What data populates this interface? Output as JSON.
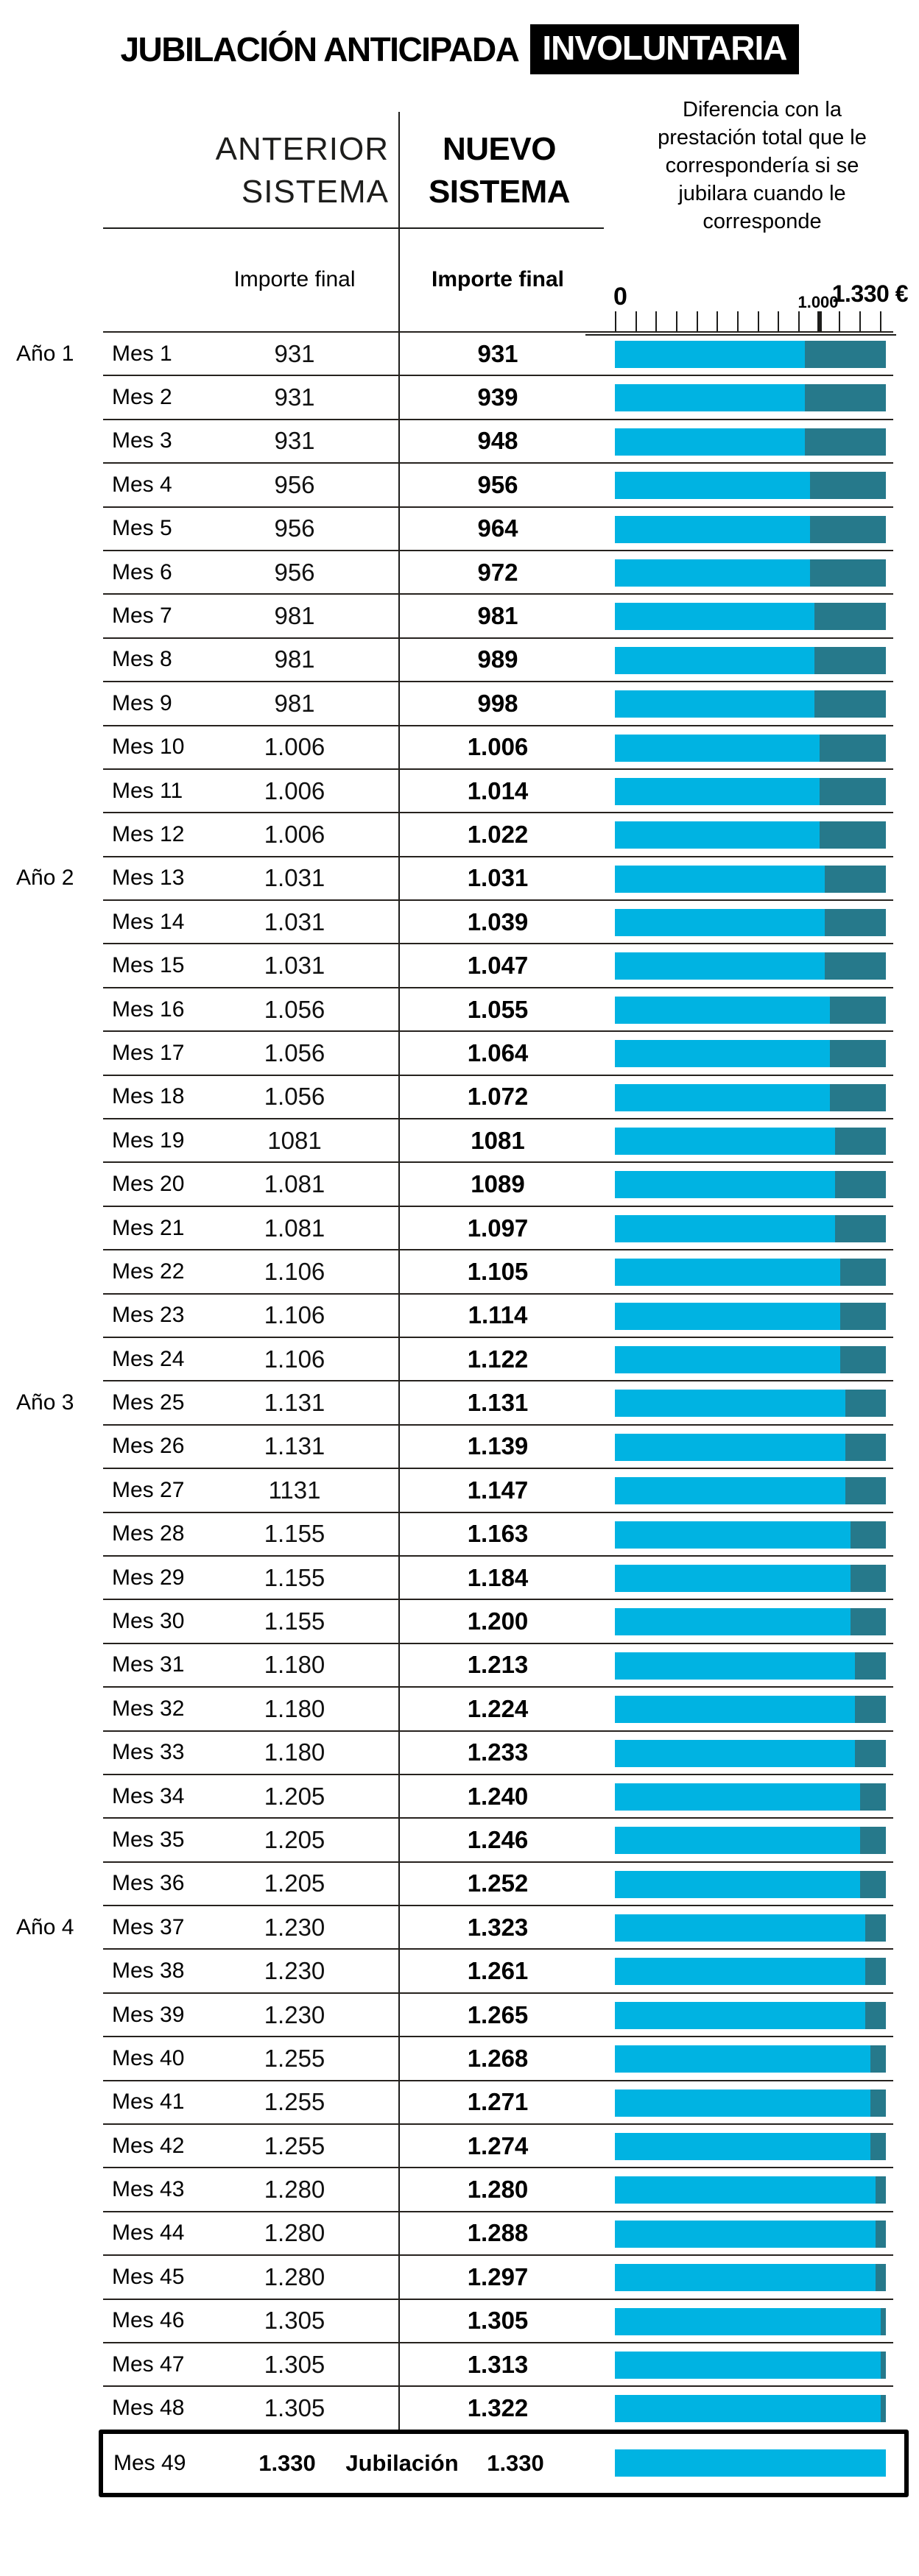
{
  "title": {
    "main": "JUBILACIÓN ANTICIPADA",
    "highlight": "INVOLUNTARIA"
  },
  "columns": {
    "anterior_line1": "ANTERIOR",
    "anterior_line2": "SISTEMA",
    "nuevo_line1": "NUEVO",
    "nuevo_line2": "SISTEMA",
    "importe_anterior": "Importe final",
    "importe_nuevo": "Importe final"
  },
  "legend": "Diferencia con la prestación total que le correspondería si se jubilara cuando le corresponde",
  "axis": {
    "zero": "0",
    "mid": "1.000",
    "max": "1.330 €",
    "tick_count": 14,
    "tick_step": 100,
    "bold_tick_index": 10
  },
  "scale_max": 1330,
  "colors": {
    "cyan": "#00b3e2",
    "teal": "#26798b"
  },
  "rows": [
    {
      "ano": "Año 1",
      "mes": "Mes 1",
      "anterior": "931",
      "nuevo": "931",
      "value": 931
    },
    {
      "mes": "Mes 2",
      "anterior": "931",
      "nuevo": "939",
      "value": 931
    },
    {
      "mes": "Mes 3",
      "anterior": "931",
      "nuevo": "948",
      "value": 931
    },
    {
      "mes": "Mes 4",
      "anterior": "956",
      "nuevo": "956",
      "value": 956
    },
    {
      "mes": "Mes 5",
      "anterior": "956",
      "nuevo": "964",
      "value": 956
    },
    {
      "mes": "Mes 6",
      "anterior": "956",
      "nuevo": "972",
      "value": 956
    },
    {
      "mes": "Mes 7",
      "anterior": "981",
      "nuevo": "981",
      "value": 981
    },
    {
      "mes": "Mes 8",
      "anterior": "981",
      "nuevo": "989",
      "value": 981
    },
    {
      "mes": "Mes 9",
      "anterior": "981",
      "nuevo": "998",
      "value": 981
    },
    {
      "mes": "Mes 10",
      "anterior": "1.006",
      "nuevo": "1.006",
      "value": 1006
    },
    {
      "mes": "Mes 11",
      "anterior": "1.006",
      "nuevo": "1.014",
      "value": 1006
    },
    {
      "mes": "Mes 12",
      "anterior": "1.006",
      "nuevo": "1.022",
      "value": 1006
    },
    {
      "ano": "Año 2",
      "mes": "Mes 13",
      "anterior": "1.031",
      "nuevo": "1.031",
      "value": 1031
    },
    {
      "mes": "Mes 14",
      "anterior": "1.031",
      "nuevo": "1.039",
      "value": 1031
    },
    {
      "mes": "Mes 15",
      "anterior": "1.031",
      "nuevo": "1.047",
      "value": 1031
    },
    {
      "mes": "Mes 16",
      "anterior": "1.056",
      "nuevo": "1.055",
      "value": 1056
    },
    {
      "mes": "Mes 17",
      "anterior": "1.056",
      "nuevo": "1.064",
      "value": 1056
    },
    {
      "mes": "Mes 18",
      "anterior": "1.056",
      "nuevo": "1.072",
      "value": 1056
    },
    {
      "mes": "Mes 19",
      "anterior": "1081",
      "nuevo": "1081",
      "value": 1081
    },
    {
      "mes": "Mes 20",
      "anterior": "1.081",
      "nuevo": "1089",
      "value": 1081
    },
    {
      "mes": "Mes 21",
      "anterior": "1.081",
      "nuevo": "1.097",
      "value": 1081
    },
    {
      "mes": "Mes 22",
      "anterior": "1.106",
      "nuevo": "1.105",
      "value": 1106
    },
    {
      "mes": "Mes 23",
      "anterior": "1.106",
      "nuevo": "1.114",
      "value": 1106
    },
    {
      "mes": "Mes 24",
      "anterior": "1.106",
      "nuevo": "1.122",
      "value": 1106
    },
    {
      "ano": "Año 3",
      "mes": "Mes 25",
      "anterior": "1.131",
      "nuevo": "1.131",
      "value": 1131
    },
    {
      "mes": "Mes 26",
      "anterior": "1.131",
      "nuevo": "1.139",
      "value": 1131
    },
    {
      "mes": "Mes 27",
      "anterior": "1131",
      "nuevo": "1.147",
      "value": 1131
    },
    {
      "mes": "Mes 28",
      "anterior": "1.155",
      "nuevo": "1.163",
      "value": 1155
    },
    {
      "mes": "Mes 29",
      "anterior": "1.155",
      "nuevo": "1.184",
      "value": 1155
    },
    {
      "mes": "Mes 30",
      "anterior": "1.155",
      "nuevo": "1.200",
      "value": 1155
    },
    {
      "mes": "Mes 31",
      "anterior": "1.180",
      "nuevo": "1.213",
      "value": 1180
    },
    {
      "mes": "Mes 32",
      "anterior": "1.180",
      "nuevo": "1.224",
      "value": 1180
    },
    {
      "mes": "Mes 33",
      "anterior": "1.180",
      "nuevo": "1.233",
      "value": 1180
    },
    {
      "mes": "Mes 34",
      "anterior": "1.205",
      "nuevo": "1.240",
      "value": 1205
    },
    {
      "mes": "Mes 35",
      "anterior": "1.205",
      "nuevo": "1.246",
      "value": 1205
    },
    {
      "mes": "Mes 36",
      "anterior": "1.205",
      "nuevo": "1.252",
      "value": 1205
    },
    {
      "ano": "Año 4",
      "mes": "Mes 37",
      "anterior": "1.230",
      "nuevo": "1.323",
      "value": 1230
    },
    {
      "mes": "Mes 38",
      "anterior": "1.230",
      "nuevo": "1.261",
      "value": 1230
    },
    {
      "mes": "Mes 39",
      "anterior": "1.230",
      "nuevo": "1.265",
      "value": 1230
    },
    {
      "mes": "Mes 40",
      "anterior": "1.255",
      "nuevo": "1.268",
      "value": 1255
    },
    {
      "mes": "Mes 41",
      "anterior": "1.255",
      "nuevo": "1.271",
      "value": 1255
    },
    {
      "mes": "Mes 42",
      "anterior": "1.255",
      "nuevo": "1.274",
      "value": 1255
    },
    {
      "mes": "Mes 43",
      "anterior": "1.280",
      "nuevo": "1.280",
      "value": 1280
    },
    {
      "mes": "Mes 44",
      "anterior": "1.280",
      "nuevo": "1.288",
      "value": 1280
    },
    {
      "mes": "Mes 45",
      "anterior": "1.280",
      "nuevo": "1.297",
      "value": 1280
    },
    {
      "mes": "Mes 46",
      "anterior": "1.305",
      "nuevo": "1.305",
      "value": 1305
    },
    {
      "mes": "Mes 47",
      "anterior": "1.305",
      "nuevo": "1.313",
      "value": 1305
    },
    {
      "mes": "Mes 48",
      "anterior": "1.305",
      "nuevo": "1.322",
      "value": 1305
    }
  ],
  "final_row": {
    "mes": "Mes 49",
    "anterior": "1.330",
    "label": "Jubilación",
    "nuevo": "1.330",
    "value": 1330
  },
  "chart_data": {
    "type": "bar",
    "title": "JUBILACIÓN ANTICIPADA INVOLUNTARIA",
    "xlabel": "Importe final (€)",
    "ylabel": "Mes",
    "xlim": [
      0,
      1330
    ],
    "legend_note": "Diferencia con la prestación total que le correspondería si se jubilara cuando le corresponde",
    "axis_ticks": [
      0,
      100,
      200,
      300,
      400,
      500,
      600,
      700,
      800,
      900,
      1000,
      1100,
      1200,
      1300
    ],
    "labeled_ticks": [
      0,
      1000,
      1330
    ],
    "categories": [
      "Mes 1",
      "Mes 2",
      "Mes 3",
      "Mes 4",
      "Mes 5",
      "Mes 6",
      "Mes 7",
      "Mes 8",
      "Mes 9",
      "Mes 10",
      "Mes 11",
      "Mes 12",
      "Mes 13",
      "Mes 14",
      "Mes 15",
      "Mes 16",
      "Mes 17",
      "Mes 18",
      "Mes 19",
      "Mes 20",
      "Mes 21",
      "Mes 22",
      "Mes 23",
      "Mes 24",
      "Mes 25",
      "Mes 26",
      "Mes 27",
      "Mes 28",
      "Mes 29",
      "Mes 30",
      "Mes 31",
      "Mes 32",
      "Mes 33",
      "Mes 34",
      "Mes 35",
      "Mes 36",
      "Mes 37",
      "Mes 38",
      "Mes 39",
      "Mes 40",
      "Mes 41",
      "Mes 42",
      "Mes 43",
      "Mes 44",
      "Mes 45",
      "Mes 46",
      "Mes 47",
      "Mes 48",
      "Mes 49"
    ],
    "year_groups": {
      "Año 1": "Mes 1",
      "Año 2": "Mes 13",
      "Año 3": "Mes 25",
      "Año 4": "Mes 37"
    },
    "series": [
      {
        "name": "Anterior sistema (Importe final)",
        "values": [
          931,
          931,
          931,
          956,
          956,
          956,
          981,
          981,
          981,
          1006,
          1006,
          1006,
          1031,
          1031,
          1031,
          1056,
          1056,
          1056,
          1081,
          1081,
          1081,
          1106,
          1106,
          1106,
          1131,
          1131,
          1131,
          1155,
          1155,
          1155,
          1180,
          1180,
          1180,
          1205,
          1205,
          1205,
          1230,
          1230,
          1230,
          1255,
          1255,
          1255,
          1280,
          1280,
          1280,
          1305,
          1305,
          1305,
          1330
        ]
      },
      {
        "name": "Nuevo sistema (Importe final)",
        "values": [
          931,
          939,
          948,
          956,
          964,
          972,
          981,
          989,
          998,
          1006,
          1014,
          1022,
          1031,
          1039,
          1047,
          1055,
          1064,
          1072,
          1081,
          1089,
          1097,
          1105,
          1114,
          1122,
          1131,
          1139,
          1147,
          1163,
          1184,
          1200,
          1213,
          1224,
          1233,
          1240,
          1246,
          1252,
          1323,
          1261,
          1265,
          1268,
          1271,
          1274,
          1280,
          1288,
          1297,
          1305,
          1313,
          1322,
          1330
        ]
      }
    ]
  }
}
